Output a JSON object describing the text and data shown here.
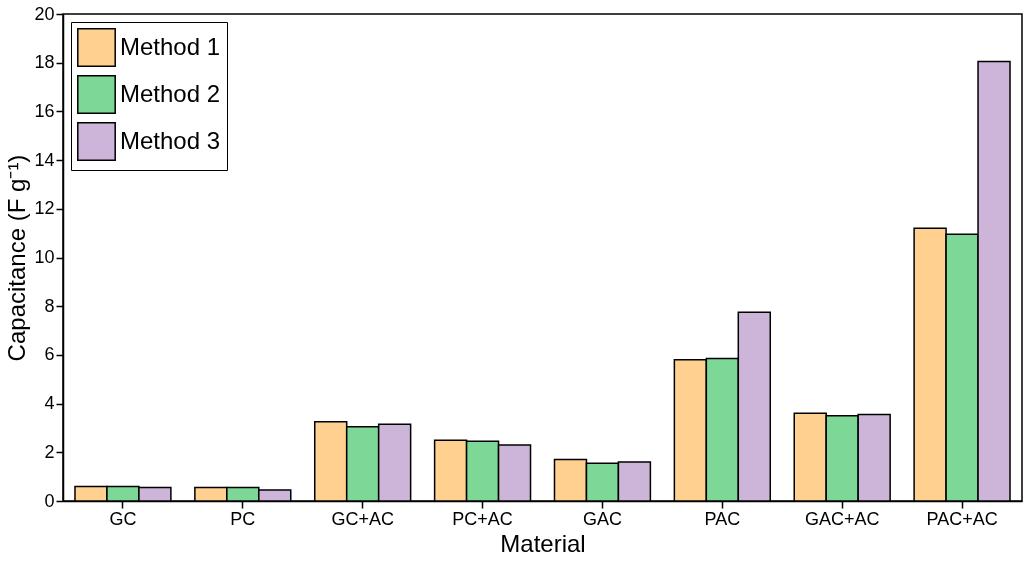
{
  "chart_data": {
    "type": "bar",
    "xlabel": "Material",
    "ylabel": "Capacitance (F g⁻¹)",
    "categories": [
      "GC",
      "PC",
      "GC+AC",
      "PC+AC",
      "GAC",
      "PAC",
      "GAC+AC",
      "PAC+AC"
    ],
    "series": [
      {
        "name": "Method 1",
        "color": "#ffd08f",
        "values": [
          0.6,
          0.55,
          3.25,
          2.5,
          1.7,
          5.8,
          3.6,
          11.2
        ]
      },
      {
        "name": "Method 2",
        "color": "#7dd897",
        "values": [
          0.6,
          0.55,
          3.05,
          2.45,
          1.55,
          5.85,
          3.5,
          10.95
        ]
      },
      {
        "name": "Method 3",
        "color": "#cdb4d9",
        "values": [
          0.55,
          0.45,
          3.15,
          2.3,
          1.6,
          7.75,
          3.55,
          18.05
        ]
      }
    ],
    "ylim": [
      0,
      20
    ],
    "yticks": [
      0,
      2,
      4,
      6,
      8,
      10,
      12,
      14,
      16,
      18,
      20
    ],
    "grid": false,
    "legend": "top left"
  }
}
